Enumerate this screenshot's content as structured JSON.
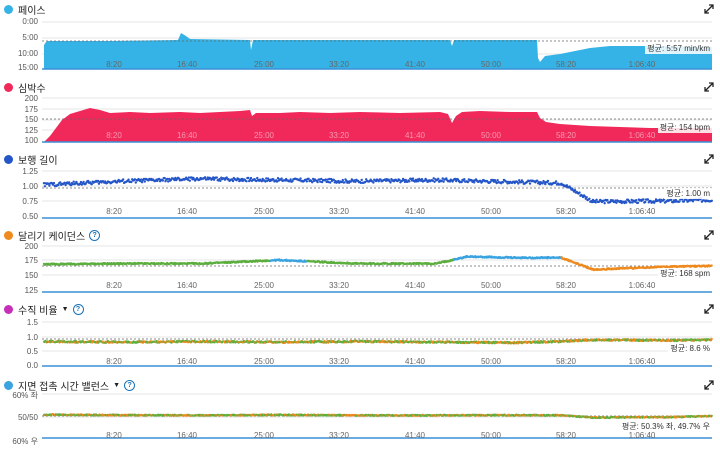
{
  "x_ticks": [
    "8:20",
    "16:40",
    "25:00",
    "33:20",
    "41:40",
    "50:00",
    "58:20",
    "1:06:40"
  ],
  "colors": {
    "pace": "#36b3e6",
    "hr": "#f0295a",
    "stride": "#2456c8",
    "cadence_green": "#5cae3e",
    "cadence_orange": "#ee8a1e",
    "vr": "#c62fb8",
    "gct": "#3aa3e0",
    "axis_blue": "#3b8fd6"
  },
  "panels": {
    "pace": {
      "title": "페이스",
      "avg": "평균: 5:57 min/km",
      "y_ticks": [
        "0:00",
        "5:00",
        "10:00",
        "15:00"
      ],
      "icon": "expand-icon"
    },
    "hr": {
      "title": "심박수",
      "avg": "평균: 154 bpm",
      "y_ticks": [
        "200",
        "175",
        "150",
        "125",
        "100"
      ],
      "icon": "expand-icon"
    },
    "stride": {
      "title": "보행 길이",
      "avg": "평균: 1.00 m",
      "y_ticks": [
        "1.25",
        "1.00",
        "0.75",
        "0.50"
      ],
      "icon": "expand-icon"
    },
    "cadence": {
      "title": "달리기 케이던스",
      "avg": "평균: 168 spm",
      "y_ticks": [
        "200",
        "175",
        "150",
        "125"
      ],
      "icon": "expand-icon"
    },
    "vr": {
      "title": "수직 비율",
      "avg": "평균: 8.6 %",
      "y_ticks": [
        "1.5",
        "1.0",
        "0.5",
        "0.0"
      ],
      "icon": "expand-icon"
    },
    "gct": {
      "title": "지면 접촉 시간 밸런스",
      "avg": "평균: 50.3% 좌, 49.7% 우",
      "y_ticks": [
        "60% 좌",
        "50/50",
        "60% 우"
      ],
      "icon": "expand-icon"
    }
  },
  "chart_data": [
    {
      "type": "area",
      "title": "페이스",
      "y_unit": "min/km",
      "ylim": [
        "0:00",
        "15:00"
      ],
      "y_inverted": true,
      "average": "5:57",
      "x": [
        "0:00",
        "1:00",
        "8:20",
        "16:00",
        "16:40",
        "17:30",
        "25:00",
        "33:20",
        "41:40",
        "50:00",
        "55:00",
        "55:30",
        "58:20",
        "1:06:40",
        "1:11:00"
      ],
      "values_min": [
        7.8,
        5.9,
        5.8,
        5.6,
        5.0,
        5.6,
        5.7,
        5.8,
        5.7,
        5.6,
        5.6,
        9.5,
        8.0,
        6.8,
        6.8
      ]
    },
    {
      "type": "area",
      "title": "심박수",
      "y_unit": "bpm",
      "ylim": [
        100,
        200
      ],
      "average": 154,
      "x": [
        "0:00",
        "1:00",
        "4:00",
        "8:20",
        "16:40",
        "25:00",
        "33:20",
        "41:40",
        "45:00",
        "50:00",
        "55:00",
        "58:20",
        "1:06:40",
        "1:11:00"
      ],
      "values": [
        105,
        120,
        160,
        162,
        163,
        162,
        163,
        164,
        155,
        165,
        162,
        138,
        132,
        128
      ]
    },
    {
      "type": "scatter",
      "title": "보행 길이",
      "y_unit": "m",
      "ylim": [
        0.5,
        1.3
      ],
      "average": 1.0,
      "x": [
        "0:00",
        "8:20",
        "16:40",
        "25:00",
        "33:20",
        "41:40",
        "50:00",
        "55:00",
        "58:20",
        "1:06:40",
        "1:11:00"
      ],
      "values": [
        1.02,
        1.08,
        1.12,
        1.1,
        1.08,
        1.1,
        1.07,
        1.05,
        0.74,
        0.75,
        0.77
      ]
    },
    {
      "type": "scatter",
      "title": "달리기 케이던스",
      "y_unit": "spm",
      "ylim": [
        125,
        210
      ],
      "average": 168,
      "x": [
        "0:00",
        "8:20",
        "16:40",
        "25:00",
        "33:20",
        "41:40",
        "45:00",
        "50:00",
        "55:00",
        "58:20",
        "1:06:40",
        "1:11:00"
      ],
      "values": [
        169,
        170,
        170,
        176,
        170,
        170,
        182,
        180,
        180,
        160,
        165,
        166
      ]
    },
    {
      "type": "scatter",
      "title": "수직 비율",
      "y_unit": "%",
      "ylim": [
        0,
        1.5
      ],
      "average": 8.6,
      "x": [
        "0:00",
        "8:20",
        "16:40",
        "25:00",
        "33:20",
        "41:40",
        "50:00",
        "55:00",
        "58:20",
        "1:06:40",
        "1:11:00"
      ],
      "values": [
        0.82,
        0.8,
        0.82,
        0.8,
        0.82,
        0.8,
        0.78,
        0.82,
        0.88,
        0.86,
        0.88
      ]
    },
    {
      "type": "scatter",
      "title": "지면 접촉 시간 밸런스",
      "ylim": [
        "60% 우",
        "60% 좌"
      ],
      "average": "50.3% 좌, 49.7% 우",
      "x": [
        "0:00",
        "8:20",
        "16:40",
        "25:00",
        "33:20",
        "41:40",
        "50:00",
        "55:00",
        "58:20",
        "1:06:40",
        "1:11:00"
      ],
      "values_left_pct": [
        50.6,
        50.4,
        50.3,
        50.5,
        50.3,
        50.3,
        50.4,
        50.3,
        49.3,
        49.5,
        50.0
      ]
    }
  ]
}
